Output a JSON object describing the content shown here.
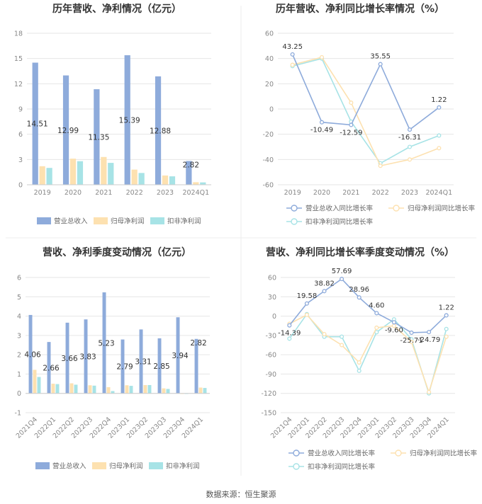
{
  "colors": {
    "revenue": "#8eabdb",
    "net_profit": "#fde1b0",
    "deducted_profit": "#a7e3e6",
    "axis_text": "#888888",
    "grid": "#e6e6e6",
    "title": "#333333"
  },
  "chart_data": [
    {
      "type": "bar",
      "title": "历年营收、净利情况（亿元）",
      "categories": [
        "2019",
        "2020",
        "2021",
        "2022",
        "2023",
        "2024Q1"
      ],
      "ylim": [
        0,
        18
      ],
      "yticks": [
        0,
        3,
        6,
        9,
        12,
        15,
        18
      ],
      "series": [
        {
          "name": "营业总收入",
          "color_key": "revenue",
          "values": [
            14.51,
            12.99,
            11.35,
            15.39,
            12.88,
            2.82
          ]
        },
        {
          "name": "归母净利润",
          "color_key": "net_profit",
          "values": [
            2.2,
            3.1,
            3.3,
            1.8,
            1.1,
            0.3
          ]
        },
        {
          "name": "扣非净利润",
          "color_key": "deducted_profit",
          "values": [
            2.0,
            2.8,
            2.6,
            1.4,
            1.0,
            0.28
          ]
        }
      ],
      "data_labels": [
        "14.51",
        "12.99",
        "11.35",
        "15.39",
        "12.88",
        "2.82"
      ],
      "legend": "bottom"
    },
    {
      "type": "line",
      "title": "历年营收、净利同比增长率情况（%）",
      "categories": [
        "2019",
        "2020",
        "2021",
        "2022",
        "2023",
        "2024Q1"
      ],
      "ylim": [
        -60,
        60
      ],
      "yticks": [
        -60,
        -40,
        -20,
        0,
        20,
        40,
        60
      ],
      "series": [
        {
          "name": "营业总收入同比增长率",
          "color_key": "revenue",
          "values": [
            43.25,
            -10.49,
            -12.59,
            35.55,
            -16.31,
            1.22
          ]
        },
        {
          "name": "归母净利润同比增长率",
          "color_key": "net_profit",
          "values": [
            35,
            41,
            5,
            -45,
            -40,
            -31
          ]
        },
        {
          "name": "扣非净利润同比增长率",
          "color_key": "deducted_profit",
          "values": [
            34,
            40,
            -10,
            -43,
            -30,
            -21
          ]
        }
      ],
      "data_labels": [
        "43.25",
        "-10.49",
        "-12.59",
        "35.55",
        "-16.31",
        "1.22"
      ],
      "legend": "bottom"
    },
    {
      "type": "bar",
      "title": "营收、净利季度变动情况（亿元）",
      "categories": [
        "2021Q4",
        "2022Q1",
        "2022Q2",
        "2022Q3",
        "2022Q4",
        "2023Q1",
        "2023Q2",
        "2023Q3",
        "2023Q4",
        "2024Q1"
      ],
      "ylim": [
        -1,
        6
      ],
      "yticks": [
        -1,
        0,
        1,
        2,
        3,
        4,
        5,
        6
      ],
      "series": [
        {
          "name": "营业总收入",
          "color_key": "revenue",
          "values": [
            4.06,
            2.66,
            3.66,
            3.83,
            5.23,
            2.79,
            3.31,
            2.85,
            3.94,
            2.82
          ]
        },
        {
          "name": "归母净利润",
          "color_key": "net_profit",
          "values": [
            1.22,
            0.5,
            0.52,
            0.42,
            0.32,
            0.42,
            0.43,
            0.26,
            -0.03,
            0.3
          ]
        },
        {
          "name": "扣非净利润",
          "color_key": "deducted_profit",
          "values": [
            0.85,
            0.48,
            0.45,
            0.4,
            0.12,
            0.39,
            0.43,
            0.23,
            -0.02,
            0.28
          ]
        }
      ],
      "data_labels": [
        "4.06",
        "2.66",
        "3.66",
        "3.83",
        "5.23",
        "2.79",
        "3.31",
        "2.85",
        "3.94",
        "2.82"
      ],
      "legend": "bottom"
    },
    {
      "type": "line",
      "title": "营收、净利同比增长率季度变动情况（%）",
      "categories": [
        "2021Q4",
        "2022Q1",
        "2022Q2",
        "2022Q3",
        "2022Q4",
        "2023Q1",
        "2023Q2",
        "2023Q3",
        "2023Q4",
        "2024Q1"
      ],
      "ylim": [
        -150,
        60
      ],
      "yticks": [
        -150,
        -120,
        -90,
        -60,
        -30,
        0,
        30,
        60
      ],
      "series": [
        {
          "name": "营业总收入同比增长率",
          "color_key": "revenue",
          "values": [
            -14.39,
            19.58,
            38.82,
            57.69,
            28.96,
            4.6,
            -9.6,
            -25.71,
            -24.79,
            1.22
          ]
        },
        {
          "name": "归母净利润同比增长率",
          "color_key": "net_profit",
          "values": [
            -12,
            2,
            -28,
            -45,
            -72,
            -18,
            -15,
            -40,
            -118,
            -32
          ]
        },
        {
          "name": "扣非净利润同比增长率",
          "color_key": "deducted_profit",
          "values": [
            -35,
            3,
            -32,
            -32,
            -85,
            -25,
            -5,
            -36,
            -120,
            -20
          ]
        }
      ],
      "data_labels": [
        "-14.39",
        "19.58",
        "38.82",
        "57.69",
        "28.96",
        "4.60",
        "-9.60",
        "-25.71",
        "-24.79",
        "1.22"
      ],
      "legend": "bottom"
    }
  ],
  "footer": "数据来源：恒生聚源"
}
